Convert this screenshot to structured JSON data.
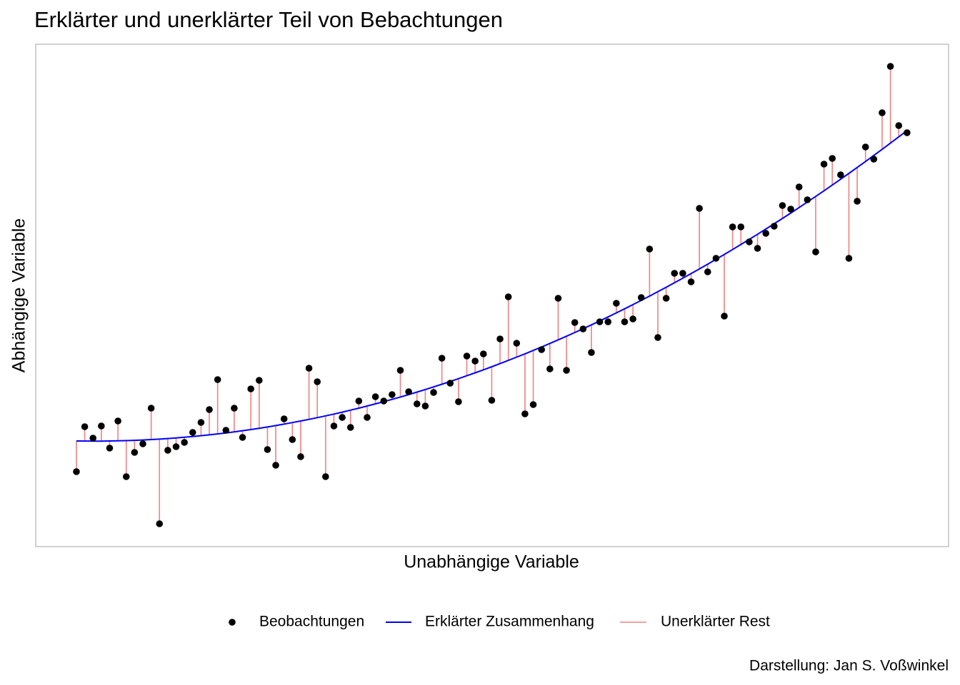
{
  "chart_data": {
    "type": "scatter",
    "title": "Erklärter und unerklärter Teil von Bebachtungen",
    "x_label": "Unabhängige Variable",
    "y_label": "Abhängige Variable",
    "caption": "Darstellung: Jan S. Voßwinkel",
    "xlim": [
      -3.9,
      106
    ],
    "ylim": [
      0,
      704
    ],
    "x": [
      1,
      2,
      3,
      4,
      5,
      6,
      7,
      8,
      9,
      10,
      11,
      12,
      13,
      14,
      15,
      16,
      17,
      18,
      19,
      20,
      21,
      22,
      23,
      24,
      25,
      26,
      27,
      28,
      29,
      30,
      31,
      32,
      33,
      34,
      35,
      36,
      37,
      38,
      39,
      40,
      41,
      42,
      43,
      44,
      45,
      46,
      47,
      48,
      49,
      50,
      51,
      52,
      53,
      54,
      55,
      56,
      57,
      58,
      59,
      60,
      61,
      62,
      63,
      64,
      65,
      66,
      67,
      68,
      69,
      70,
      71,
      72,
      73,
      74,
      75,
      76,
      77,
      78,
      79,
      80,
      81,
      82,
      83,
      84,
      85,
      86,
      87,
      88,
      89,
      90,
      91,
      92,
      93,
      94,
      95,
      96,
      97,
      98,
      99,
      100,
      101
    ],
    "series": [
      {
        "name": "Beobachtungen",
        "color": "#000000",
        "values": [
          105,
          168,
          152,
          169,
          138,
          176,
          98,
          132,
          144,
          194,
          32,
          135,
          140,
          146,
          160,
          174,
          192,
          234,
          163,
          194,
          153,
          221,
          233,
          136,
          114,
          179,
          150,
          126,
          250,
          231,
          98,
          169,
          181,
          167,
          204,
          181,
          210,
          204,
          213,
          247,
          217,
          200,
          197,
          216,
          264,
          229,
          203,
          267,
          260,
          270,
          205,
          291,
          350,
          285,
          186,
          199,
          276,
          249,
          348,
          247,
          314,
          305,
          272,
          315,
          315,
          341,
          315,
          319,
          349,
          417,
          293,
          348,
          383,
          383,
          371,
          474,
          385,
          404,
          323,
          448,
          448,
          427,
          418,
          439,
          449,
          478,
          473,
          504,
          486,
          413,
          536,
          544,
          521,
          404,
          484,
          560,
          543,
          608,
          673,
          590,
          580
        ]
      },
      {
        "name": "Erklärter Zusammenhang",
        "color": "#0000ff",
        "values": [
          148.0,
          147.9,
          147.8,
          147.8,
          148.0,
          148.2,
          148.5,
          148.9,
          149.4,
          150.0,
          150.6,
          151.4,
          152.3,
          153.2,
          154.2,
          155.4,
          156.6,
          157.9,
          159.3,
          160.8,
          162.4,
          164.0,
          165.8,
          167.6,
          169.6,
          171.6,
          173.8,
          176.0,
          178.3,
          180.7,
          183.2,
          185.7,
          188.4,
          191.2,
          194.0,
          197.0,
          200.0,
          203.1,
          206.3,
          209.6,
          213.0,
          216.5,
          220.1,
          223.8,
          227.5,
          231.4,
          235.3,
          239.4,
          243.5,
          247.7,
          252.0,
          256.4,
          260.9,
          265.5,
          270.1,
          274.9,
          279.7,
          284.7,
          289.7,
          294.8,
          300.0,
          305.3,
          310.7,
          316.2,
          321.8,
          327.5,
          333.2,
          339.1,
          345.0,
          351.0,
          357.2,
          363.4,
          369.7,
          376.1,
          382.6,
          389.1,
          395.8,
          402.6,
          409.4,
          416.3,
          423.4,
          430.5,
          437.7,
          445.0,
          452.4,
          459.9,
          467.4,
          475.1,
          482.9,
          490.7,
          498.6,
          506.7,
          514.8,
          523.0,
          531.3,
          539.7,
          548.2,
          556.7,
          565.4,
          574.2,
          583.0
        ]
      }
    ],
    "residuals": {
      "name": "Unerklärter Rest",
      "color": "#f08080"
    }
  }
}
